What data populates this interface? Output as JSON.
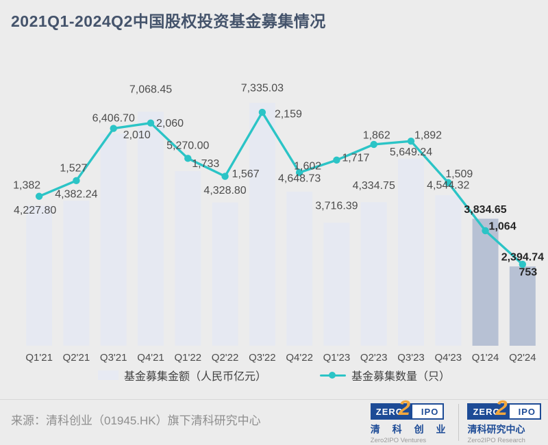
{
  "title": "2021Q1-2024Q2中国股权投资基金募集情况",
  "chart_data": {
    "type": "bar",
    "title": "2021Q1-2024Q2中国股权投资基金募集情况",
    "categories": [
      "Q1'21",
      "Q2'21",
      "Q3'21",
      "Q4'21",
      "Q1'22",
      "Q2'22",
      "Q3'22",
      "Q4'22",
      "Q1'23",
      "Q2'23",
      "Q3'23",
      "Q4'23",
      "Q1'24",
      "Q2'24"
    ],
    "series": [
      {
        "name": "基金募集金额（人民币亿元）",
        "type": "bar",
        "unit": "人民币亿元",
        "values": [
          4227.8,
          4382.24,
          6406.7,
          7068.45,
          5270.0,
          4328.8,
          7335.03,
          4648.73,
          3716.39,
          4334.75,
          5649.24,
          4544.32,
          3834.65,
          2394.74
        ]
      },
      {
        "name": "基金募集数量（只）",
        "type": "line",
        "unit": "只",
        "values": [
          1382,
          1527,
          2010,
          2060,
          1733,
          1567,
          2159,
          1602,
          1717,
          1862,
          1892,
          1509,
          1064,
          753
        ]
      }
    ],
    "highlight_categories": [
      "Q1'24",
      "Q2'24"
    ],
    "axes": {
      "amount_max": 8000,
      "count_max": 2400,
      "grid": false,
      "axis_lines": false
    },
    "legend_position": "bottom",
    "colors": {
      "bar": "#e6e9f2",
      "bar_highlight": "#b7c1d4",
      "line": "#2bc4c6",
      "label": "#4c4c4c",
      "label_bold": "#252525",
      "xlabel": "#4b4b4b"
    }
  },
  "legend": {
    "amount_label": "基金募集金额（人民币亿元）",
    "count_label": "基金募集数量（只）"
  },
  "footer": {
    "source": "来源：清科创业（01945.HK）旗下清科研究中心",
    "logos": [
      {
        "zero": "ZERO",
        "two": "2",
        "ipo": "IPO",
        "cn": "清 科 创 业",
        "en": "Zero2IPO Ventures"
      },
      {
        "zero": "ZERO",
        "two": "2",
        "ipo": "IPO",
        "cn": "清科研究中心",
        "en": "Zero2IPO Research"
      }
    ]
  }
}
